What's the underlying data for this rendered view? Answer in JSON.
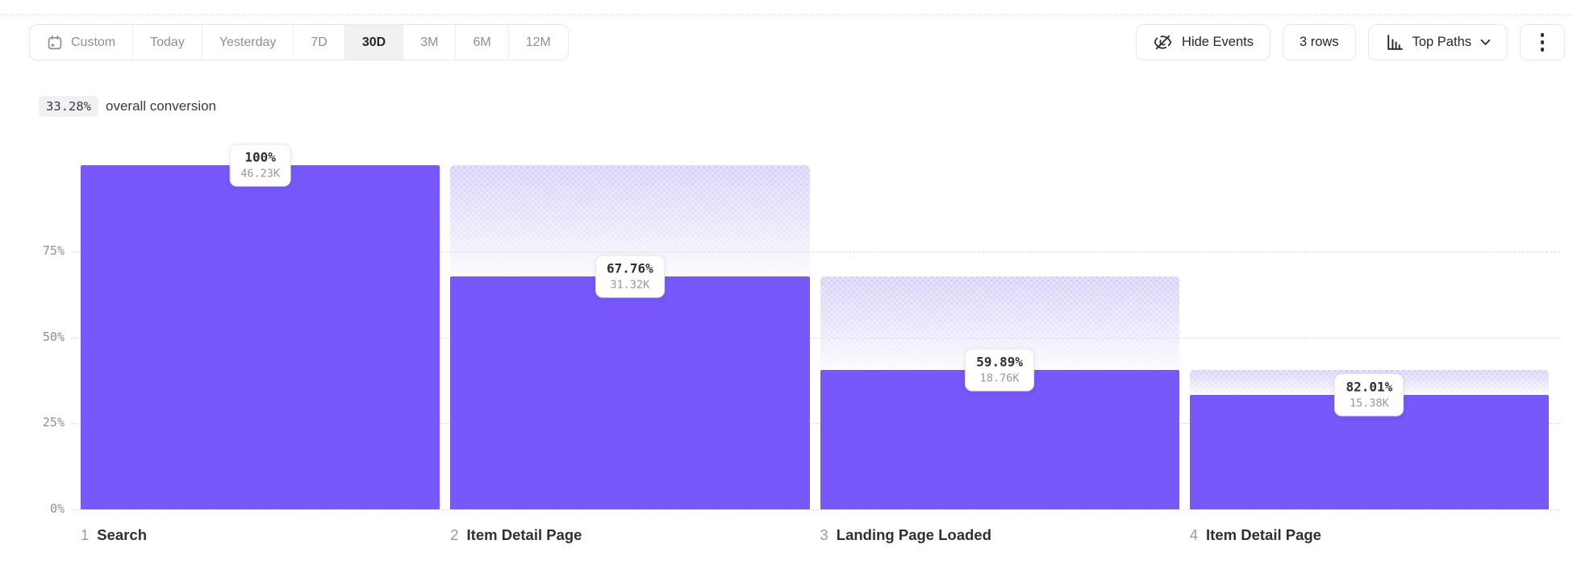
{
  "toolbar": {
    "date_ranges": [
      {
        "label": "Custom",
        "icon": "calendar",
        "selected": false
      },
      {
        "label": "Today",
        "selected": false
      },
      {
        "label": "Yesterday",
        "selected": false
      },
      {
        "label": "7D",
        "selected": false
      },
      {
        "label": "30D",
        "selected": true
      },
      {
        "label": "3M",
        "selected": false
      },
      {
        "label": "6M",
        "selected": false
      },
      {
        "label": "12M",
        "selected": false
      }
    ],
    "hide_events_label": "Hide Events",
    "hide_events_icon": "eye-off",
    "rows_label": "3 rows",
    "top_paths_label": "Top Paths",
    "top_paths_icon": "bar-chart",
    "more_icon": "kebab-vertical"
  },
  "summary": {
    "value": "33.28%",
    "label": "overall conversion"
  },
  "theme": {
    "accent": "#7857FB",
    "dropoff_top": "#D7CEFA",
    "grid_color": "#DEDEE2",
    "selected_segment_bg": "#F1F1F3"
  },
  "chart_data": {
    "type": "funnel_bar",
    "title": "",
    "ylim": [
      0,
      100
    ],
    "grid": "dashed horizontal",
    "legend": "none",
    "y_ticks": [
      {
        "label": "75%",
        "value": 75
      },
      {
        "label": "50%",
        "value": 50
      },
      {
        "label": "25%",
        "value": 25
      },
      {
        "label": "0%",
        "value": 0
      }
    ],
    "bar_color": "#7857FB",
    "steps": [
      {
        "index": "1",
        "label": "Search",
        "step_conversion": "100%",
        "count": "46.23K",
        "cumulative_pct": 100
      },
      {
        "index": "2",
        "label": "Item Detail Page",
        "step_conversion": "67.76%",
        "count": "31.32K",
        "cumulative_pct": 67.75
      },
      {
        "index": "3",
        "label": "Landing Page Loaded",
        "step_conversion": "59.89%",
        "count": "18.76K",
        "cumulative_pct": 40.58
      },
      {
        "index": "4",
        "label": "Item Detail Page",
        "step_conversion": "82.01%",
        "count": "15.38K",
        "cumulative_pct": 33.27
      }
    ]
  }
}
